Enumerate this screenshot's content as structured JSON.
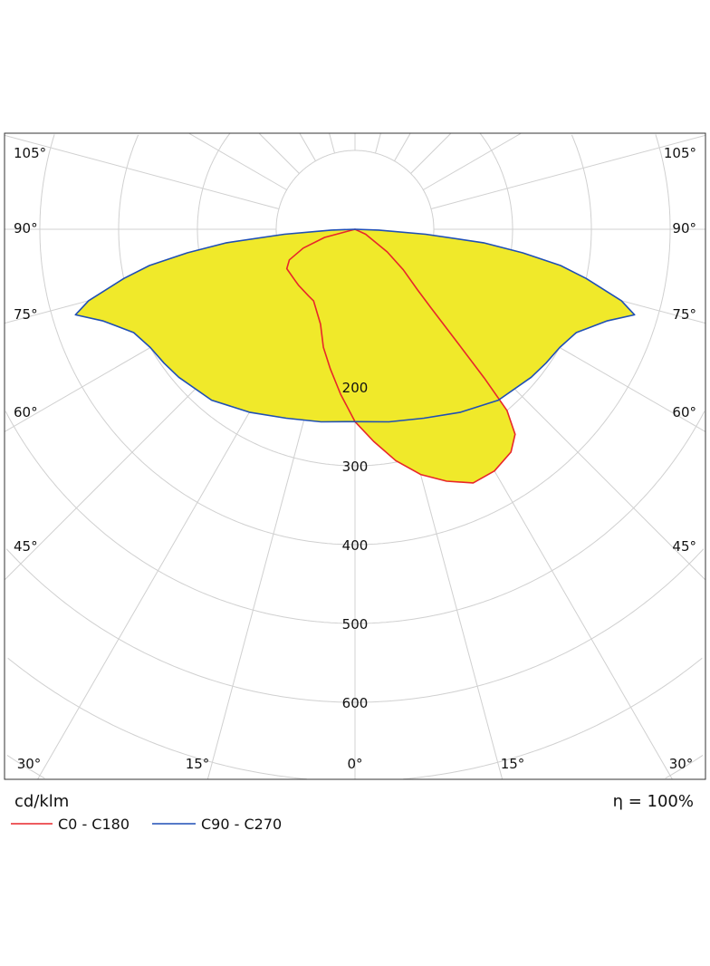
{
  "chart_data": {
    "type": "polar",
    "unit_label": "cd/klm",
    "efficiency_label": "η = 100%",
    "radial_ticks": [
      200,
      300,
      400,
      500,
      600
    ],
    "radial_grid_step": 100,
    "angular_grid_step_deg": 15,
    "side_angle_labels": [
      "105°",
      "90°",
      "75°",
      "60°",
      "45°"
    ],
    "bottom_angle_labels": [
      "30°",
      "15°",
      "0°",
      "15°",
      "30°"
    ],
    "grid": true,
    "fill_color": "#f0e92a",
    "series": [
      {
        "name": "C0 - C180",
        "color": "#e8262a",
        "gamma_deg": [
          -90,
          -75,
          -70,
          -65,
          -60,
          -50,
          -45,
          -35,
          -30,
          -20,
          -15,
          -10,
          -5,
          0,
          5,
          10,
          15,
          20,
          25,
          30,
          35,
          38,
          40,
          41,
          42,
          44,
          46,
          50,
          55,
          65,
          90
        ],
        "values": [
          0,
          40,
          70,
          92,
          100,
          100,
          101,
          103,
          105,
          128,
          155,
          180,
          210,
          244,
          270,
          298,
          322,
          340,
          355,
          354,
          345,
          330,
          300,
          250,
          200,
          140,
          110,
          80,
          50,
          15,
          0
        ]
      },
      {
        "name": "C90 - C270",
        "color": "#1f4fb5",
        "gamma_deg": [
          -90,
          -88,
          -86,
          -84,
          -82,
          -80,
          -78,
          -75,
          -73,
          -70,
          -65,
          -60,
          -55,
          -50,
          -40,
          -30,
          -20,
          -10,
          0,
          10,
          20,
          30,
          40,
          50,
          55,
          60,
          65,
          70,
          73,
          75,
          78,
          80,
          82,
          84,
          86,
          88,
          90
        ],
        "values": [
          0,
          30,
          90,
          164,
          215,
          265,
          300,
          350,
          371,
          340,
          310,
          300,
          296,
          292,
          283,
          268,
          255,
          248,
          244,
          248,
          255,
          268,
          283,
          292,
          296,
          300,
          310,
          340,
          371,
          350,
          300,
          265,
          215,
          164,
          90,
          30,
          0
        ]
      }
    ]
  }
}
